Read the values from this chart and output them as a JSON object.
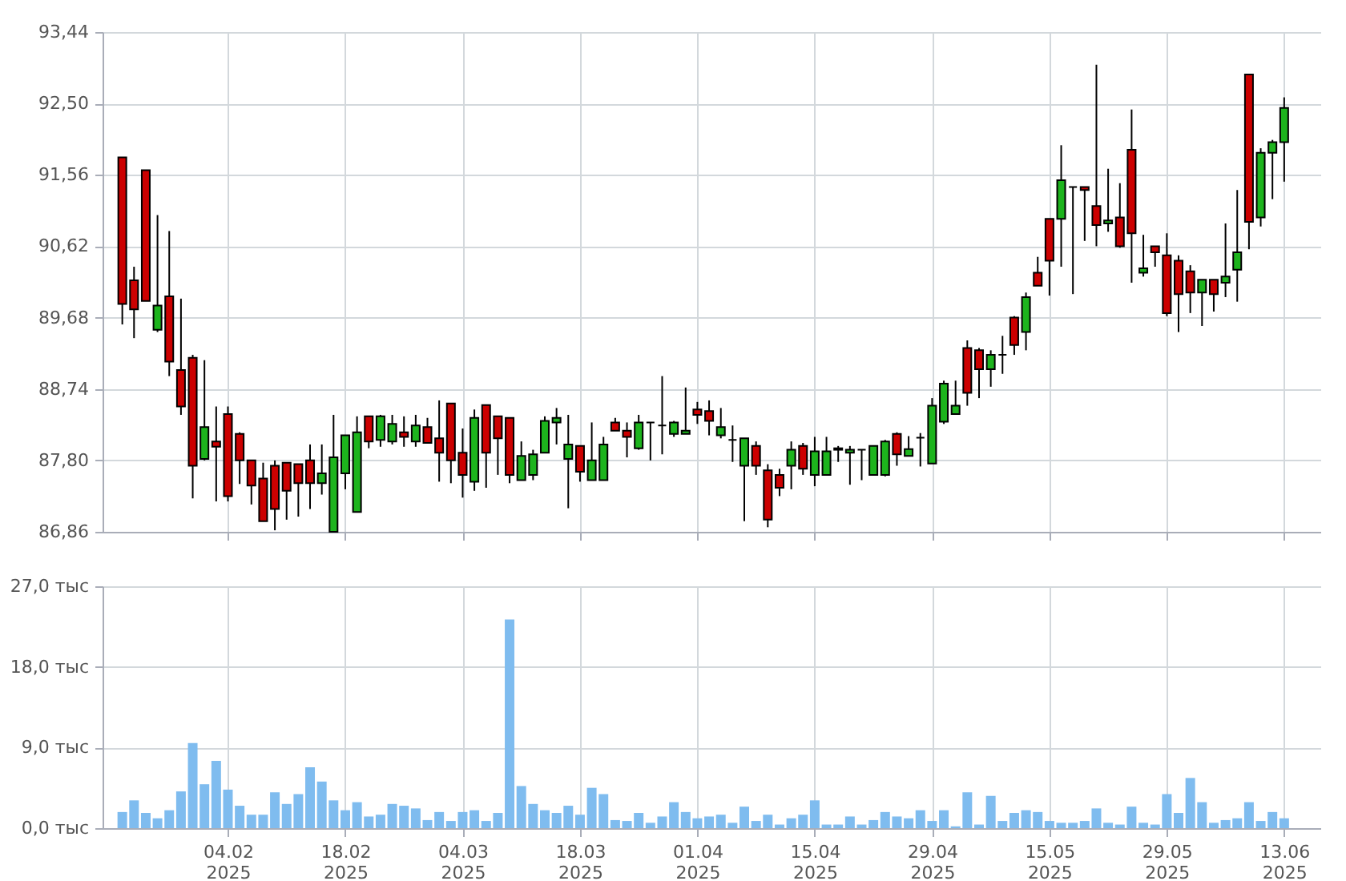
{
  "chart_data": [
    {
      "type": "candlestick",
      "tick_labels": "y",
      "grid": true,
      "categories": [
        null,
        null,
        null,
        null,
        null,
        null,
        null,
        null,
        null,
        null,
        null,
        null,
        null,
        null,
        null,
        null,
        null,
        null,
        null,
        null,
        null,
        null,
        null,
        null,
        null,
        null,
        null,
        null,
        null,
        null,
        null,
        null,
        null,
        null,
        null,
        null,
        null,
        null,
        null,
        null,
        null,
        null,
        null,
        null,
        null,
        null,
        null,
        null,
        null,
        null,
        null,
        null,
        null,
        null,
        null,
        null,
        null,
        null,
        null,
        null,
        null,
        null,
        null,
        null,
        null,
        null,
        null,
        null,
        null,
        null,
        null,
        null,
        null,
        null,
        null,
        null,
        null,
        null,
        null,
        null,
        null,
        null,
        null,
        null,
        null,
        null,
        null,
        null,
        null,
        null,
        null,
        null,
        null,
        null,
        null,
        null,
        null,
        null,
        null,
        null
      ],
      "ylim": [
        86.86,
        93.44
      ],
      "yticks": [
        {
          "value": 86.86,
          "label": "86,86"
        },
        {
          "value": 87.8,
          "label": "87,80"
        },
        {
          "value": 88.74,
          "label": "88,74"
        },
        {
          "value": 89.68,
          "label": "89,68"
        },
        {
          "value": 90.62,
          "label": "90,62"
        },
        {
          "value": 91.56,
          "label": "91,56"
        },
        {
          "value": 92.5,
          "label": "92,50"
        },
        {
          "value": 93.44,
          "label": "93,44"
        }
      ],
      "ohlc": [
        [
          91.79,
          91.79,
          89.59,
          89.86
        ],
        [
          90.17,
          90.35,
          89.41,
          89.79
        ],
        [
          91.62,
          91.62,
          89.9,
          89.9
        ],
        [
          89.52,
          91.03,
          89.49,
          89.84
        ],
        [
          89.96,
          90.82,
          88.91,
          89.1
        ],
        [
          88.99,
          89.93,
          88.4,
          88.51
        ],
        [
          89.15,
          89.19,
          87.3,
          87.73
        ],
        [
          87.82,
          89.12,
          87.8,
          88.24
        ],
        [
          88.05,
          88.51,
          87.26,
          87.98
        ],
        [
          88.41,
          88.51,
          87.26,
          87.33
        ],
        [
          88.15,
          88.17,
          87.49,
          87.8
        ],
        [
          87.8,
          87.8,
          87.22,
          87.47
        ],
        [
          87.56,
          87.77,
          87.0,
          87.0
        ],
        [
          87.73,
          87.8,
          86.88,
          87.16
        ],
        [
          87.77,
          87.77,
          87.02,
          87.4
        ],
        [
          87.75,
          87.75,
          87.06,
          87.5
        ],
        [
          87.8,
          88.01,
          87.16,
          87.5
        ],
        [
          87.5,
          88.01,
          87.35,
          87.63
        ],
        [
          86.86,
          88.4,
          86.86,
          87.84
        ],
        [
          87.63,
          88.13,
          87.42,
          88.13
        ],
        [
          87.12,
          88.38,
          87.12,
          88.17
        ],
        [
          88.38,
          88.38,
          87.96,
          88.05
        ],
        [
          88.07,
          88.4,
          87.98,
          88.38
        ],
        [
          88.05,
          88.4,
          88.01,
          88.28
        ],
        [
          88.17,
          88.38,
          87.98,
          88.11
        ],
        [
          88.05,
          88.4,
          87.98,
          88.26
        ],
        [
          88.24,
          88.36,
          88.03,
          88.03
        ],
        [
          88.09,
          88.59,
          87.52,
          87.9
        ],
        [
          88.55,
          88.55,
          87.5,
          87.8
        ],
        [
          87.9,
          88.22,
          87.31,
          87.61
        ],
        [
          87.52,
          88.47,
          87.4,
          88.36
        ],
        [
          88.53,
          88.53,
          87.44,
          87.9
        ],
        [
          88.38,
          88.38,
          87.61,
          88.09
        ],
        [
          88.36,
          88.36,
          87.5,
          87.61
        ],
        [
          87.54,
          88.05,
          87.54,
          87.86
        ],
        [
          87.61,
          87.94,
          87.54,
          87.88
        ],
        [
          87.9,
          88.38,
          87.9,
          88.32
        ],
        [
          88.3,
          88.49,
          88.01,
          88.36
        ],
        [
          87.82,
          88.4,
          87.17,
          88.01
        ],
        [
          87.99,
          87.99,
          87.52,
          87.65
        ],
        [
          87.54,
          88.3,
          87.54,
          87.8
        ],
        [
          87.54,
          88.11,
          87.54,
          88.01
        ],
        [
          88.3,
          88.36,
          88.19,
          88.19
        ],
        [
          88.19,
          88.3,
          87.84,
          88.11
        ],
        [
          87.96,
          88.4,
          87.94,
          88.3
        ],
        [
          88.3,
          88.3,
          87.8,
          88.3
        ],
        [
          88.26,
          88.91,
          87.88,
          88.26
        ],
        [
          88.15,
          88.32,
          88.11,
          88.3
        ],
        [
          88.15,
          88.76,
          88.15,
          88.19
        ],
        [
          88.47,
          88.57,
          88.28,
          88.4
        ],
        [
          88.45,
          88.59,
          88.13,
          88.32
        ],
        [
          88.13,
          88.49,
          88.09,
          88.24
        ],
        [
          88.07,
          88.26,
          87.78,
          88.07
        ],
        [
          87.73,
          88.09,
          87.0,
          88.09
        ],
        [
          87.99,
          88.05,
          87.61,
          87.73
        ],
        [
          87.67,
          87.75,
          86.92,
          87.02
        ],
        [
          87.61,
          87.69,
          87.33,
          87.44
        ],
        [
          87.73,
          88.05,
          87.42,
          87.94
        ],
        [
          87.99,
          88.03,
          87.61,
          87.69
        ],
        [
          87.61,
          88.11,
          87.46,
          87.92
        ],
        [
          87.61,
          88.11,
          87.61,
          87.92
        ],
        [
          87.94,
          87.99,
          87.78,
          87.96
        ],
        [
          87.9,
          87.99,
          87.48,
          87.94
        ],
        [
          87.94,
          87.94,
          87.54,
          87.94
        ],
        [
          87.61,
          87.99,
          87.61,
          87.99
        ],
        [
          87.61,
          88.07,
          87.59,
          88.05
        ],
        [
          88.15,
          88.17,
          87.73,
          87.88
        ],
        [
          87.86,
          88.12,
          87.86,
          87.95
        ],
        [
          88.1,
          88.16,
          87.72,
          88.1
        ],
        [
          87.76,
          88.62,
          87.76,
          88.52
        ],
        [
          88.31,
          88.85,
          88.28,
          88.81
        ],
        [
          88.41,
          88.85,
          88.41,
          88.52
        ],
        [
          89.28,
          89.38,
          88.52,
          88.69
        ],
        [
          89.25,
          89.28,
          88.62,
          89.0
        ],
        [
          89.0,
          89.25,
          88.77,
          89.19
        ],
        [
          89.19,
          89.44,
          88.94,
          89.19
        ],
        [
          89.68,
          89.7,
          89.19,
          89.32
        ],
        [
          89.49,
          90.01,
          89.25,
          89.95
        ],
        [
          90.27,
          90.48,
          90.1,
          90.1
        ],
        [
          90.98,
          90.98,
          89.97,
          90.43
        ],
        [
          90.98,
          91.95,
          90.35,
          91.49
        ],
        [
          91.4,
          91.4,
          89.99,
          91.4
        ],
        [
          91.4,
          91.4,
          90.69,
          91.36
        ],
        [
          91.15,
          93.01,
          90.62,
          90.9
        ],
        [
          90.92,
          91.64,
          90.81,
          90.96
        ],
        [
          91.0,
          91.45,
          90.6,
          90.62
        ],
        [
          91.89,
          92.42,
          90.14,
          90.79
        ],
        [
          90.27,
          90.77,
          90.22,
          90.33
        ],
        [
          90.62,
          90.62,
          90.35,
          90.54
        ],
        [
          90.5,
          90.79,
          89.7,
          89.74
        ],
        [
          90.43,
          90.5,
          89.49,
          89.99
        ],
        [
          90.29,
          90.37,
          89.74,
          90.01
        ],
        [
          90.01,
          90.18,
          89.57,
          90.18
        ],
        [
          90.18,
          90.18,
          89.76,
          89.99
        ],
        [
          90.14,
          90.92,
          89.95,
          90.22
        ],
        [
          90.31,
          91.36,
          89.89,
          90.54
        ],
        [
          92.88,
          92.88,
          90.58,
          90.94
        ],
        [
          91.0,
          91.91,
          90.88,
          91.85
        ],
        [
          91.85,
          92.02,
          91.24,
          91.99
        ],
        [
          91.99,
          92.58,
          91.47,
          92.44
        ]
      ],
      "colors": [
        "#cc0000",
        "#cc0000",
        "#cc0000",
        "#1db41d",
        "#cc0000",
        "#cc0000",
        "#cc0000",
        "#1db41d",
        "#cc0000",
        "#cc0000",
        "#cc0000",
        "#cc0000",
        "#cc0000",
        "#cc0000",
        "#cc0000",
        "#cc0000",
        "#cc0000",
        "#1db41d",
        "#1db41d",
        "#1db41d",
        "#1db41d",
        "#cc0000",
        "#1db41d",
        "#1db41d",
        "#cc0000",
        "#1db41d",
        "#cc0000",
        "#cc0000",
        "#cc0000",
        "#cc0000",
        "#1db41d",
        "#cc0000",
        "#cc0000",
        "#cc0000",
        "#1db41d",
        "#1db41d",
        "#1db41d",
        "#1db41d",
        "#1db41d",
        "#cc0000",
        "#1db41d",
        "#1db41d",
        "#cc0000",
        "#cc0000",
        "#1db41d",
        "#000000",
        "#000000",
        "#1db41d",
        "#1db41d",
        "#cc0000",
        "#cc0000",
        "#1db41d",
        "#000000",
        "#1db41d",
        "#cc0000",
        "#cc0000",
        "#cc0000",
        "#1db41d",
        "#cc0000",
        "#1db41d",
        "#1db41d",
        "#1db41d",
        "#1db41d",
        "#000000",
        "#1db41d",
        "#1db41d",
        "#cc0000",
        "#1db41d",
        "#000000",
        "#1db41d",
        "#1db41d",
        "#1db41d",
        "#cc0000",
        "#cc0000",
        "#1db41d",
        "#000000",
        "#cc0000",
        "#1db41d",
        "#cc0000",
        "#cc0000",
        "#1db41d",
        "#000000",
        "#cc0000",
        "#cc0000",
        "#1db41d",
        "#cc0000",
        "#cc0000",
        "#1db41d",
        "#cc0000",
        "#cc0000",
        "#cc0000",
        "#cc0000",
        "#1db41d",
        "#cc0000",
        "#1db41d",
        "#1db41d",
        "#cc0000",
        "#1db41d",
        "#1db41d",
        "#1db41d"
      ]
    },
    {
      "type": "bar",
      "grid": true,
      "color": "#7fbcef",
      "categories": [
        null,
        null,
        null,
        null,
        null,
        null,
        null,
        null,
        null,
        "04.02\n2025",
        null,
        null,
        null,
        null,
        null,
        null,
        null,
        null,
        null,
        "18.02\n2025",
        null,
        null,
        null,
        null,
        null,
        null,
        null,
        null,
        null,
        "04.03\n2025",
        null,
        null,
        null,
        null,
        null,
        null,
        null,
        null,
        null,
        "18.03\n2025",
        null,
        null,
        null,
        null,
        null,
        null,
        null,
        null,
        null,
        "01.04\n2025",
        null,
        null,
        null,
        null,
        null,
        null,
        null,
        null,
        null,
        "15.04\n2025",
        null,
        null,
        null,
        null,
        null,
        null,
        null,
        null,
        null,
        "29.04\n2025",
        null,
        null,
        null,
        null,
        null,
        null,
        null,
        null,
        null,
        "15.05\n2025",
        null,
        null,
        null,
        null,
        null,
        null,
        null,
        null,
        null,
        "29.05\n2025",
        null,
        null,
        null,
        null,
        null,
        null,
        null,
        null,
        null,
        "13.06\n2025"
      ],
      "ylim": [
        0,
        27
      ],
      "yticks": [
        {
          "value": 0,
          "label": "0,0 тыс"
        },
        {
          "value": 9,
          "label": "9,0 тыс"
        },
        {
          "value": 18,
          "label": "18,0 тыс"
        },
        {
          "value": 27,
          "label": "27,0 тыс"
        }
      ],
      "values": [
        1.8,
        3.1,
        1.7,
        1.1,
        2.0,
        4.1,
        9.5,
        4.9,
        7.5,
        4.3,
        2.5,
        1.5,
        1.5,
        4.0,
        2.7,
        3.8,
        6.8,
        5.2,
        3.1,
        2.0,
        2.9,
        1.3,
        1.5,
        2.7,
        2.5,
        2.2,
        0.9,
        1.8,
        0.8,
        1.8,
        2.0,
        0.8,
        1.7,
        23.3,
        4.7,
        2.7,
        2.0,
        1.7,
        2.5,
        1.5,
        4.5,
        3.8,
        0.9,
        0.8,
        1.7,
        0.6,
        1.3,
        2.9,
        1.8,
        1.1,
        1.3,
        1.5,
        0.6,
        2.4,
        0.8,
        1.5,
        0.4,
        1.1,
        1.5,
        3.1,
        0.4,
        0.4,
        1.3,
        0.4,
        0.9,
        1.8,
        1.3,
        1.1,
        2.0,
        0.8,
        2.0,
        0.2,
        4.0,
        0.4,
        3.6,
        0.8,
        1.7,
        2.0,
        1.8,
        0.8,
        0.6,
        0.6,
        0.8,
        2.2,
        0.6,
        0.4,
        2.4,
        0.6,
        0.4,
        3.8,
        1.7,
        5.6,
        2.9,
        0.6,
        0.9,
        1.1,
        2.9,
        0.8,
        1.8,
        1.1
      ]
    }
  ]
}
